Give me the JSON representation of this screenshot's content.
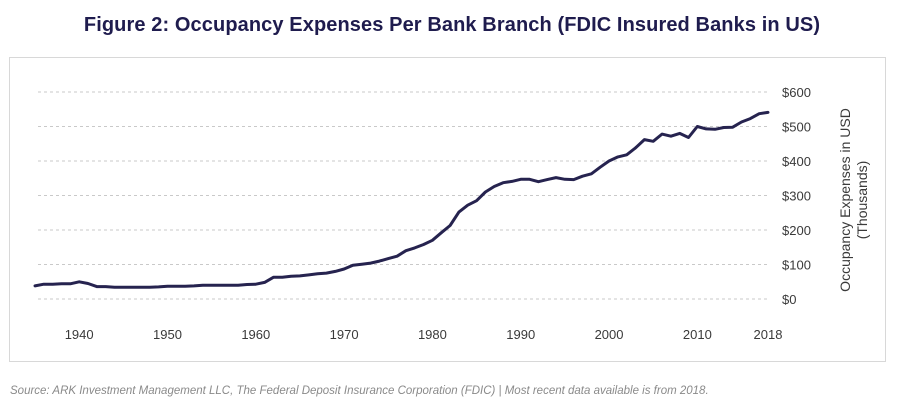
{
  "title": "Figure 2: Occupancy Expenses Per Bank Branch (FDIC Insured Banks in US)",
  "source": "Source: ARK Investment Management LLC, The Federal Deposit Insurance Corporation (FDIC)  | Most recent data available is from 2018.",
  "colors": {
    "line": "#26234f",
    "grid": "#c9c9c9",
    "title": "#1f1c4e"
  },
  "chart_data": {
    "type": "line",
    "title": "Figure 2: Occupancy Expenses Per Bank Branch (FDIC Insured Banks in US)",
    "xlabel": "",
    "ylabel": "Occupancy Expenses in USD (Thousands)",
    "ylabel_lines": [
      "Occupancy Expenses in USD",
      "(Thousands)"
    ],
    "xlim": [
      1935,
      2018
    ],
    "ylim": [
      0,
      600
    ],
    "x_ticks": [
      1940,
      1950,
      1960,
      1970,
      1980,
      1990,
      2000,
      2010,
      2018
    ],
    "x_tick_labels": [
      "1940",
      "1950",
      "1960",
      "1970",
      "1980",
      "1990",
      "2000",
      "2010",
      "2018"
    ],
    "y_ticks": [
      0,
      100,
      200,
      300,
      400,
      500,
      600
    ],
    "y_tick_labels": [
      "$0",
      "$100",
      "$200",
      "$300",
      "$400",
      "$500",
      "$600"
    ],
    "y_axis_position": "right",
    "grid": "horizontal dashed",
    "series": [
      {
        "x": [
          1935,
          1936,
          1937,
          1938,
          1939,
          1940,
          1941,
          1942,
          1943,
          1944,
          1945,
          1946,
          1947,
          1948,
          1949,
          1950,
          1951,
          1952,
          1953,
          1954,
          1955,
          1956,
          1957,
          1958,
          1959,
          1960,
          1961,
          1962,
          1963,
          1964,
          1965,
          1966,
          1967,
          1968,
          1969,
          1970,
          1971,
          1972,
          1973,
          1974,
          1975,
          1976,
          1977,
          1978,
          1979,
          1980,
          1981,
          1982,
          1983,
          1984,
          1985,
          1986,
          1987,
          1988,
          1989,
          1990,
          1991,
          1992,
          1993,
          1994,
          1995,
          1996,
          1997,
          1998,
          1999,
          2000,
          2001,
          2002,
          2003,
          2004,
          2005,
          2006,
          2007,
          2008,
          2009,
          2010,
          2011,
          2012,
          2013,
          2014,
          2015,
          2016,
          2017,
          2018
        ],
        "values": [
          38,
          43,
          43,
          44,
          44,
          50,
          45,
          36,
          36,
          34,
          34,
          34,
          34,
          34,
          35,
          37,
          37,
          37,
          38,
          40,
          40,
          40,
          40,
          40,
          42,
          43,
          48,
          63,
          63,
          66,
          67,
          70,
          73,
          75,
          80,
          87,
          98,
          101,
          104,
          110,
          117,
          124,
          140,
          148,
          158,
          170,
          192,
          213,
          252,
          272,
          285,
          310,
          326,
          337,
          341,
          347,
          347,
          340,
          346,
          352,
          347,
          346,
          356,
          363,
          382,
          400,
          412,
          418,
          438,
          462,
          457,
          478,
          472,
          480,
          468,
          500,
          493,
          492,
          497,
          498,
          513,
          523,
          537,
          541
        ]
      }
    ]
  }
}
